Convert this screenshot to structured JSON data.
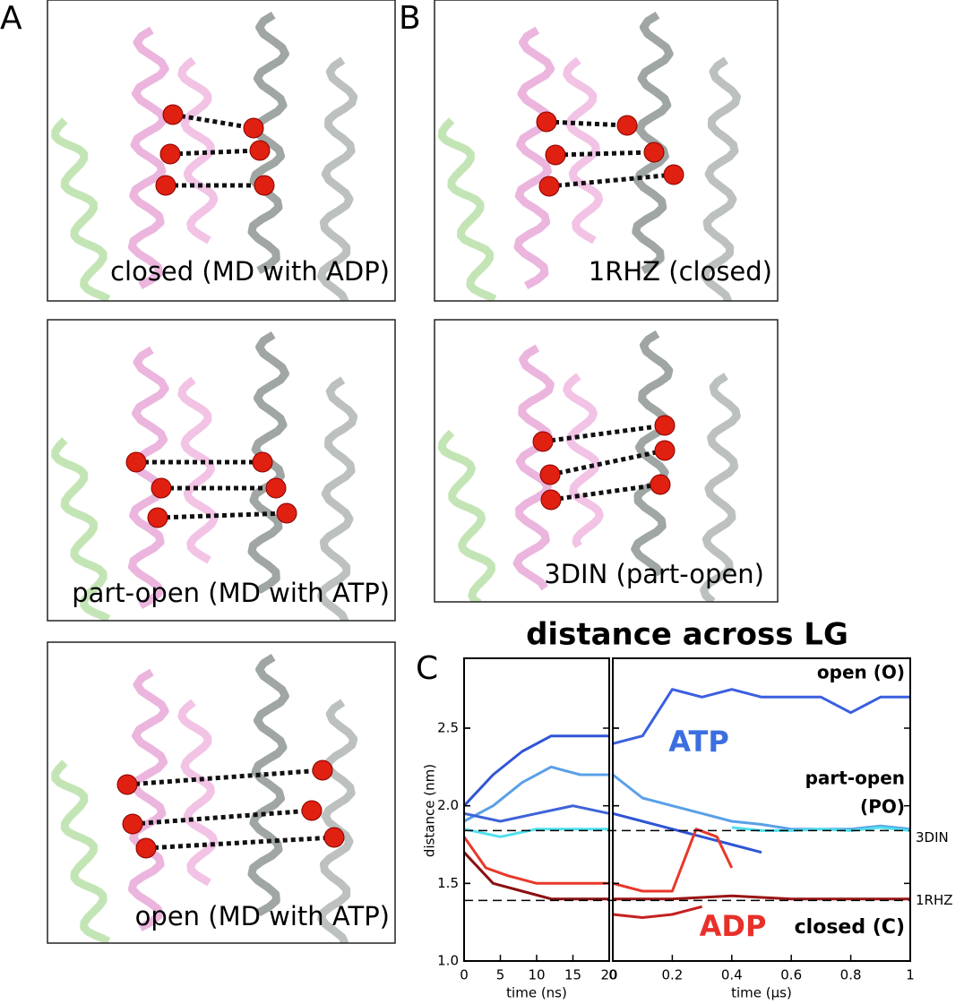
{
  "figure": {
    "panel_labels": [
      "A",
      "B",
      "C"
    ],
    "captions": [
      "closed (MD with ADP)",
      "part-open (MD with ATP)",
      "open (MD with ATP)",
      "1RHZ (closed)",
      "3DIN (part-open)"
    ]
  },
  "chart_data": [
    {
      "type": "line",
      "title": "distance across LG",
      "y_label": "distance (nm)",
      "x_label": "time (ns)",
      "xlim": [
        0,
        20
      ],
      "xticks": [
        0,
        5,
        10,
        15,
        20
      ],
      "ylim": [
        1.0,
        2.95
      ],
      "yticks": [
        {
          "value": 1.0,
          "label": "1.0"
        },
        1.5,
        {
          "value": 2.0,
          "label": "2.0"
        },
        2.5
      ],
      "series": [
        {
          "color": "#2f55d4",
          "x": [
            0,
            4,
            8,
            12,
            16,
            20
          ],
          "values": [
            2.0,
            2.2,
            2.35,
            2.45,
            2.45,
            2.45
          ]
        },
        {
          "color": "#5aa0e8",
          "x": [
            0,
            4,
            8,
            12,
            16,
            20
          ],
          "values": [
            1.9,
            2.0,
            2.15,
            2.25,
            2.2,
            2.2
          ]
        },
        {
          "color": "#3d63d8",
          "x": [
            0,
            5,
            10,
            15,
            20
          ],
          "values": [
            1.95,
            1.9,
            1.95,
            2.0,
            1.95
          ]
        },
        {
          "color": "#4fe0ee",
          "x": [
            0,
            5,
            10,
            15,
            20
          ],
          "values": [
            1.85,
            1.8,
            1.85,
            1.85,
            1.85
          ]
        },
        {
          "color": "#e8382a",
          "x": [
            0,
            3,
            6,
            10,
            15,
            20
          ],
          "values": [
            1.8,
            1.6,
            1.55,
            1.5,
            1.5,
            1.5
          ]
        },
        {
          "color": "#8a1010",
          "x": [
            0,
            4,
            8,
            12,
            16,
            20
          ],
          "values": [
            1.7,
            1.5,
            1.45,
            1.4,
            1.4,
            1.4
          ]
        }
      ]
    },
    {
      "type": "line",
      "x_label": "time (μs)",
      "xlim": [
        0,
        1
      ],
      "xticks": [
        0,
        0.2,
        0.4,
        0.6,
        0.8,
        1
      ],
      "ylim": [
        1.0,
        2.95
      ],
      "reference_lines": [
        {
          "value": 1.84,
          "label": "3DIN"
        },
        {
          "value": 1.39,
          "label": "1RHZ"
        }
      ],
      "annotations": [
        "open (O)",
        "ATP",
        "part-open",
        "(PO)",
        "ADP",
        "closed (C)"
      ],
      "series": [
        {
          "color": "#3b5fe0",
          "x": [
            0,
            0.1,
            0.15,
            0.2,
            0.3,
            0.4,
            0.5,
            0.6,
            0.7,
            0.8,
            0.9,
            1
          ],
          "values": [
            2.4,
            2.45,
            2.6,
            2.75,
            2.7,
            2.75,
            2.7,
            2.7,
            2.7,
            2.6,
            2.7,
            2.7
          ]
        },
        {
          "color": "#5aa0e8",
          "x": [
            0,
            0.1,
            0.2,
            0.3,
            0.4,
            0.5,
            0.6,
            0.7,
            0.8,
            0.9,
            1
          ],
          "values": [
            2.2,
            2.05,
            2.0,
            1.95,
            1.9,
            1.88,
            1.85,
            1.85,
            1.85,
            1.87,
            1.85
          ]
        },
        {
          "color": "#4fe0ee",
          "x": [
            0.4,
            0.5,
            0.6,
            0.7,
            0.8,
            0.9,
            1
          ],
          "values": [
            1.86,
            1.84,
            1.84,
            1.85,
            1.84,
            1.86,
            1.84
          ]
        },
        {
          "color": "#2f55d4",
          "x": [
            0,
            0.1,
            0.2,
            0.3,
            0.4,
            0.5
          ],
          "values": [
            1.95,
            1.9,
            1.85,
            1.8,
            1.75,
            1.7
          ]
        },
        {
          "color": "#e8382a",
          "x": [
            0,
            0.1,
            0.2,
            0.28,
            0.35,
            0.4
          ],
          "values": [
            1.5,
            1.45,
            1.45,
            1.85,
            1.8,
            1.6
          ]
        },
        {
          "color": "#9a1515",
          "x": [
            0,
            0.2,
            0.4,
            0.6,
            0.8,
            1
          ],
          "values": [
            1.4,
            1.4,
            1.42,
            1.4,
            1.4,
            1.4
          ]
        },
        {
          "color": "#c42020",
          "x": [
            0,
            0.1,
            0.2,
            0.3
          ],
          "values": [
            1.3,
            1.28,
            1.3,
            1.35
          ]
        }
      ]
    }
  ]
}
